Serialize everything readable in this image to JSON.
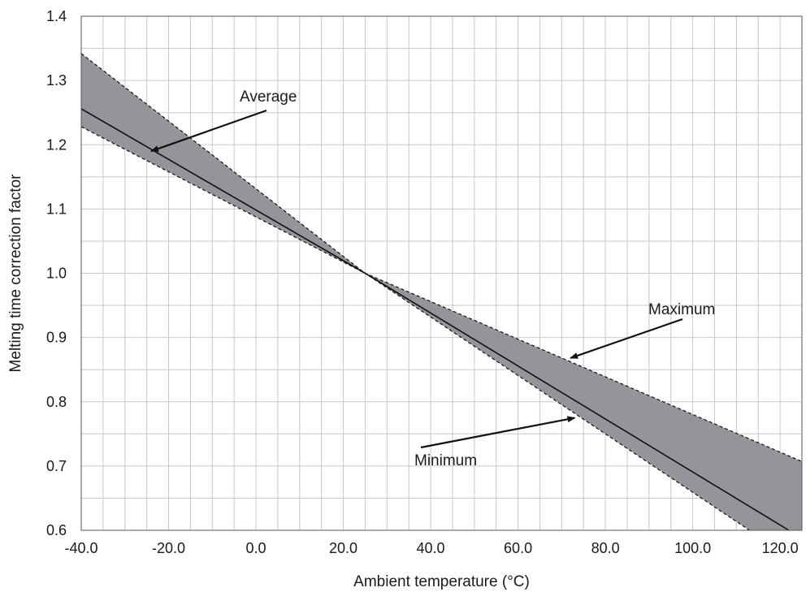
{
  "chart_data": {
    "type": "line",
    "title": "",
    "xlabel": "Ambient temperature (°C)",
    "ylabel": "Melting time correction factor",
    "xlim": [
      -40,
      125
    ],
    "ylim": [
      0.6,
      1.4
    ],
    "x_ticks": [
      -40,
      -20,
      0,
      20,
      40,
      60,
      80,
      100,
      120
    ],
    "x_tick_labels": [
      "-40.0",
      "-20.0",
      "0.0",
      "20.0",
      "40.0",
      "60.0",
      "80.0",
      "100.0",
      "120.0"
    ],
    "y_ticks": [
      0.6,
      0.7,
      0.8,
      0.9,
      1.0,
      1.1,
      1.2,
      1.3,
      1.4
    ],
    "y_tick_labels": [
      "0.6",
      "0.7",
      "0.8",
      "0.9",
      "1.0",
      "1.1",
      "1.2",
      "1.3",
      "1.4"
    ],
    "grid": true,
    "band_color": "#939598",
    "series": [
      {
        "name": "Maximum",
        "style": "dashed",
        "x": [
          -40,
          25,
          125
        ],
        "y": [
          1.342,
          1.0,
          0.707
        ]
      },
      {
        "name": "Average",
        "style": "solid",
        "x": [
          -40,
          25,
          122
        ],
        "y": [
          1.256,
          1.0,
          0.6
        ]
      },
      {
        "name": "Minimum",
        "style": "dashed",
        "x": [
          -40,
          25,
          113
        ],
        "y": [
          1.228,
          1.0,
          0.6
        ]
      }
    ],
    "annotations": [
      {
        "text": "Average",
        "target_x": -24,
        "target_y": 1.19
      },
      {
        "text": "Maximum",
        "target_x": 72,
        "target_y": 0.868
      },
      {
        "text": "Minimum",
        "target_x": 73,
        "target_y": 0.775
      }
    ]
  }
}
